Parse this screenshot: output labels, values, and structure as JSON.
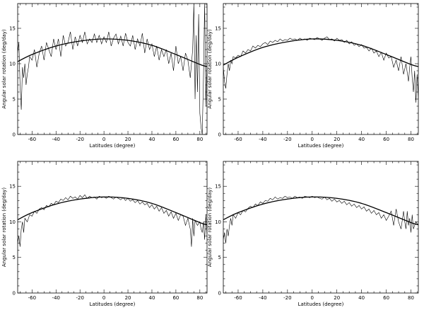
{
  "chart_data": [
    {
      "type": "line",
      "panel": "top-left",
      "xlabel": "Latitudes (degree)",
      "ylabel": "Angular solar rotation (deg/day)",
      "xlim": [
        -72,
        86
      ],
      "ylim": [
        0,
        18.5
      ],
      "xticks": [
        -60,
        -40,
        -20,
        0,
        20,
        40,
        60,
        80
      ],
      "yticks": [
        0,
        5,
        10,
        15
      ],
      "fit_curve": {
        "x": [
          -72,
          -60,
          -40,
          -20,
          0,
          20,
          40,
          60,
          80,
          86
        ],
        "y": [
          10.3,
          11.3,
          12.5,
          13.2,
          13.5,
          13.3,
          12.6,
          11.3,
          9.9,
          9.6
        ]
      },
      "observed": {
        "x": [
          -72,
          -71,
          -70,
          -69,
          -68,
          -67,
          -66,
          -65,
          -64,
          -63,
          -62,
          -60,
          -58,
          -56,
          -54,
          -52,
          -50,
          -48,
          -46,
          -44,
          -42,
          -40,
          -38,
          -36,
          -34,
          -32,
          -30,
          -28,
          -26,
          -24,
          -22,
          -20,
          -18,
          -16,
          -14,
          -12,
          -10,
          -8,
          -6,
          -4,
          -2,
          0,
          2,
          4,
          6,
          8,
          10,
          12,
          14,
          16,
          18,
          20,
          22,
          24,
          26,
          28,
          30,
          32,
          34,
          36,
          38,
          40,
          42,
          44,
          46,
          48,
          50,
          52,
          54,
          56,
          58,
          60,
          62,
          64,
          66,
          68,
          70,
          72,
          74,
          75,
          76,
          77,
          78,
          79,
          80,
          81,
          82,
          83,
          84,
          85,
          86
        ],
        "y": [
          11.5,
          13.0,
          7.0,
          3.5,
          9.5,
          8.0,
          10.0,
          7.0,
          8.5,
          9.5,
          11.0,
          10.5,
          12.0,
          9.5,
          11.5,
          12.5,
          10.5,
          13.0,
          12.0,
          11.0,
          13.5,
          12.0,
          13.5,
          11.0,
          14.0,
          12.5,
          13.0,
          14.5,
          12.0,
          13.8,
          12.5,
          14.0,
          13.0,
          14.5,
          12.8,
          13.5,
          13.0,
          14.2,
          13.0,
          14.0,
          12.8,
          13.8,
          13.0,
          14.5,
          12.5,
          13.6,
          14.2,
          12.8,
          13.9,
          12.5,
          14.3,
          13.0,
          12.5,
          14.0,
          12.0,
          13.5,
          12.5,
          14.3,
          11.5,
          13.5,
          12.0,
          12.8,
          11.0,
          12.5,
          10.5,
          12.0,
          11.0,
          12.0,
          10.0,
          11.5,
          9.0,
          12.5,
          10.0,
          11.0,
          9.0,
          11.5,
          10.5,
          8.0,
          12.0,
          18.5,
          5.0,
          14.0,
          6.0,
          17.0,
          3.0,
          1.0,
          0.0,
          8.0,
          18.5,
          4.0,
          11.0
        ]
      }
    },
    {
      "type": "line",
      "panel": "top-right",
      "xlabel": "Latitudes (degree)",
      "ylabel": "Angular solar rotation (deg/day)",
      "xlim": [
        -72,
        86
      ],
      "ylim": [
        0,
        18.5
      ],
      "xticks": [
        -60,
        -40,
        -20,
        0,
        20,
        40,
        60,
        80
      ],
      "yticks": [
        0,
        5,
        10,
        15
      ],
      "fit_curve": {
        "x": [
          -72,
          -60,
          -40,
          -20,
          0,
          20,
          40,
          60,
          80,
          86
        ],
        "y": [
          9.8,
          10.9,
          12.3,
          13.1,
          13.5,
          13.3,
          12.6,
          11.3,
          9.9,
          9.6
        ]
      },
      "observed": {
        "x": [
          -72,
          -71,
          -70,
          -69,
          -68,
          -67,
          -66,
          -65,
          -64,
          -62,
          -60,
          -58,
          -56,
          -54,
          -52,
          -50,
          -48,
          -46,
          -44,
          -42,
          -40,
          -38,
          -36,
          -34,
          -32,
          -30,
          -28,
          -26,
          -24,
          -22,
          -20,
          -18,
          -16,
          -14,
          -12,
          -10,
          -8,
          -6,
          -4,
          -2,
          0,
          2,
          4,
          6,
          8,
          10,
          12,
          14,
          16,
          18,
          20,
          22,
          24,
          26,
          28,
          30,
          32,
          34,
          36,
          38,
          40,
          42,
          44,
          46,
          48,
          50,
          52,
          54,
          56,
          58,
          60,
          62,
          64,
          66,
          68,
          70,
          72,
          74,
          76,
          78,
          79,
          80,
          81,
          82,
          83,
          84,
          85,
          86
        ],
        "y": [
          9.5,
          7.5,
          6.5,
          8.5,
          10.0,
          9.0,
          10.5,
          10.0,
          11.0,
          10.8,
          11.2,
          11.0,
          11.8,
          11.5,
          12.0,
          11.8,
          12.5,
          12.2,
          12.6,
          12.4,
          12.8,
          13.0,
          12.7,
          13.2,
          13.0,
          13.3,
          13.1,
          13.5,
          13.2,
          13.4,
          13.3,
          13.6,
          13.4,
          13.5,
          13.3,
          13.6,
          13.4,
          13.5,
          13.3,
          13.6,
          13.5,
          13.4,
          13.7,
          13.5,
          13.3,
          13.6,
          13.8,
          13.4,
          13.5,
          13.2,
          13.6,
          13.3,
          13.4,
          13.0,
          13.3,
          12.8,
          13.1,
          12.6,
          12.8,
          12.4,
          12.7,
          12.2,
          12.3,
          11.8,
          12.2,
          11.5,
          11.8,
          11.0,
          11.6,
          10.5,
          11.5,
          10.8,
          11.0,
          9.5,
          10.5,
          9.0,
          11.0,
          8.5,
          10.0,
          7.5,
          9.5,
          11.0,
          8.0,
          6.0,
          9.0,
          4.5,
          8.5,
          5.0
        ]
      }
    },
    {
      "type": "line",
      "panel": "bottom-left",
      "xlabel": "Latitudes (degree)",
      "ylabel": "Angular solar rotation (deg/day)",
      "xlim": [
        -72,
        86
      ],
      "ylim": [
        0,
        18.5
      ],
      "xticks": [
        -60,
        -40,
        -20,
        0,
        20,
        40,
        60,
        80
      ],
      "yticks": [
        0,
        5,
        10,
        15
      ],
      "fit_curve": {
        "x": [
          -72,
          -60,
          -40,
          -20,
          0,
          20,
          40,
          60,
          80,
          86
        ],
        "y": [
          10.3,
          11.3,
          12.5,
          13.2,
          13.5,
          13.3,
          12.6,
          11.3,
          9.9,
          9.6
        ]
      },
      "observed": {
        "x": [
          -72,
          -71,
          -70,
          -69,
          -68,
          -67,
          -66,
          -64,
          -62,
          -60,
          -58,
          -56,
          -54,
          -52,
          -50,
          -48,
          -46,
          -44,
          -42,
          -40,
          -38,
          -36,
          -34,
          -32,
          -30,
          -28,
          -26,
          -24,
          -22,
          -20,
          -18,
          -16,
          -14,
          -12,
          -10,
          -8,
          -6,
          -4,
          -2,
          0,
          2,
          4,
          6,
          8,
          10,
          12,
          14,
          16,
          18,
          20,
          22,
          24,
          26,
          28,
          30,
          32,
          34,
          36,
          38,
          40,
          42,
          44,
          46,
          48,
          50,
          52,
          54,
          56,
          58,
          60,
          62,
          64,
          66,
          68,
          70,
          72,
          73,
          74,
          75,
          76,
          78,
          80,
          81,
          82,
          83,
          84,
          85,
          86
        ],
        "y": [
          7.0,
          8.0,
          6.5,
          9.0,
          10.0,
          8.5,
          10.5,
          10.0,
          11.0,
          10.8,
          11.5,
          11.2,
          11.8,
          12.0,
          11.7,
          12.3,
          12.1,
          12.6,
          12.4,
          12.9,
          12.7,
          13.2,
          13.0,
          13.4,
          13.1,
          13.6,
          13.3,
          13.5,
          13.2,
          13.7,
          13.4,
          13.8,
          13.3,
          13.6,
          13.4,
          13.5,
          13.2,
          13.6,
          13.4,
          13.5,
          13.3,
          13.6,
          13.4,
          13.2,
          13.5,
          13.3,
          13.1,
          13.4,
          13.0,
          13.3,
          12.9,
          13.1,
          12.7,
          13.0,
          12.5,
          12.8,
          12.4,
          12.6,
          12.0,
          12.4,
          11.8,
          12.2,
          11.5,
          12.0,
          11.2,
          11.6,
          10.8,
          11.4,
          10.5,
          11.2,
          10.2,
          11.0,
          10.8,
          9.5,
          10.5,
          9.0,
          6.5,
          10.5,
          8.0,
          10.2,
          9.5,
          10.0,
          9.0,
          8.5,
          10.0,
          7.5,
          11.0,
          8.0
        ]
      }
    },
    {
      "type": "line",
      "panel": "bottom-right",
      "xlabel": "Latitudes (degree)",
      "ylabel": "Angular solar rotation (deg/day)",
      "xlim": [
        -72,
        86
      ],
      "ylim": [
        0,
        18.5
      ],
      "xticks": [
        -60,
        -40,
        -20,
        0,
        20,
        40,
        60,
        80
      ],
      "yticks": [
        0,
        5,
        10,
        15
      ],
      "fit_curve": {
        "x": [
          -72,
          -60,
          -40,
          -20,
          0,
          20,
          40,
          60,
          80,
          86
        ],
        "y": [
          10.3,
          11.3,
          12.5,
          13.2,
          13.5,
          13.3,
          12.6,
          11.3,
          9.9,
          9.6
        ]
      },
      "observed": {
        "x": [
          -72,
          -71,
          -70,
          -69,
          -68,
          -67,
          -66,
          -65,
          -64,
          -62,
          -60,
          -58,
          -56,
          -54,
          -52,
          -50,
          -48,
          -46,
          -44,
          -42,
          -40,
          -38,
          -36,
          -34,
          -32,
          -30,
          -28,
          -26,
          -24,
          -22,
          -20,
          -18,
          -16,
          -14,
          -12,
          -10,
          -8,
          -6,
          -4,
          -2,
          0,
          2,
          4,
          6,
          8,
          10,
          12,
          14,
          16,
          18,
          20,
          22,
          24,
          26,
          28,
          30,
          32,
          34,
          36,
          38,
          40,
          42,
          44,
          46,
          48,
          50,
          52,
          54,
          56,
          58,
          60,
          62,
          64,
          66,
          68,
          70,
          72,
          74,
          75,
          76,
          77,
          78,
          79,
          80,
          81,
          82,
          84,
          86
        ],
        "y": [
          7.5,
          8.5,
          7.0,
          9.0,
          8.0,
          9.5,
          10.5,
          9.5,
          11.0,
          10.5,
          11.3,
          11.0,
          11.6,
          11.4,
          11.9,
          12.2,
          12.0,
          12.5,
          12.3,
          12.8,
          12.6,
          13.0,
          12.9,
          13.3,
          13.1,
          13.5,
          13.2,
          13.4,
          13.3,
          13.6,
          13.4,
          13.5,
          13.3,
          13.6,
          13.4,
          13.5,
          13.3,
          13.6,
          13.5,
          13.4,
          13.6,
          13.4,
          13.5,
          13.3,
          13.2,
          13.5,
          13.1,
          13.3,
          12.9,
          13.2,
          12.8,
          13.0,
          12.6,
          12.9,
          12.4,
          12.7,
          12.2,
          12.5,
          12.0,
          12.3,
          11.8,
          12.1,
          11.5,
          11.8,
          11.2,
          11.6,
          11.0,
          11.3,
          10.5,
          11.0,
          10.2,
          10.8,
          11.5,
          9.5,
          11.8,
          10.0,
          9.0,
          11.5,
          10.0,
          9.0,
          11.5,
          9.5,
          10.5,
          8.5,
          11.0,
          9.0,
          10.0,
          9.5
        ]
      }
    }
  ]
}
